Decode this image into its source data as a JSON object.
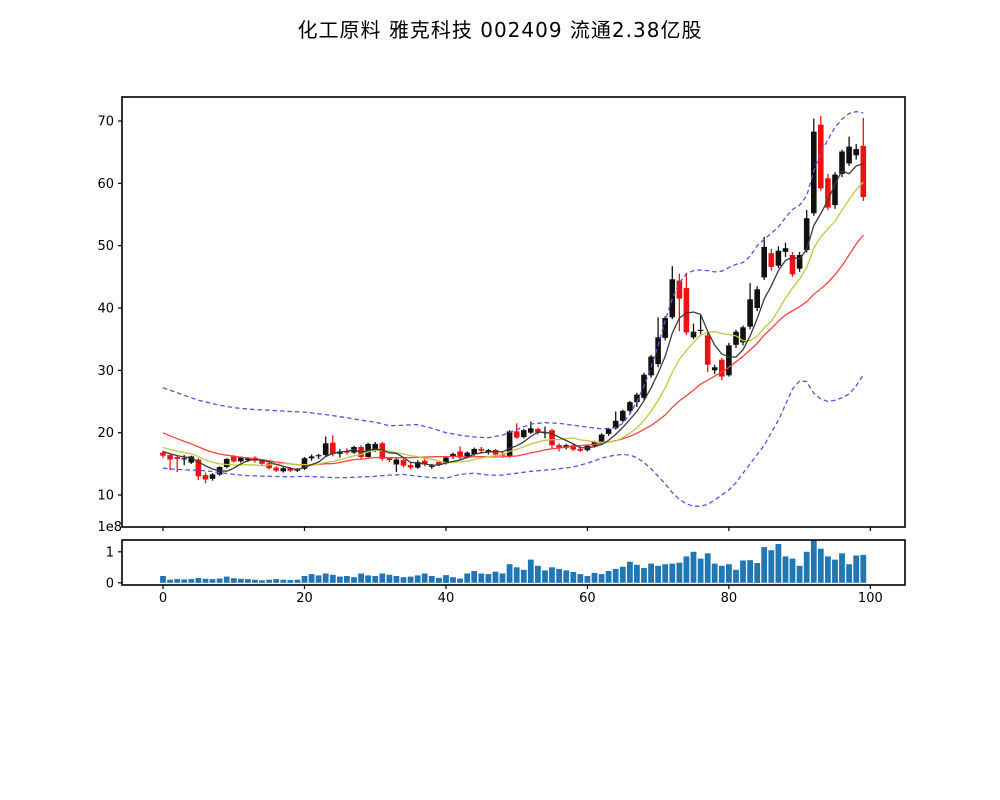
{
  "title": "化工原料 雅克科技 002409 流通2.38亿股",
  "labels": {
    "volume_scale": "1e8"
  },
  "chart_data": {
    "type": "candlestick",
    "title": "化工原料 雅克科技 002409 流通2.38亿股",
    "xlabel": "",
    "ylabel": "",
    "grid": false,
    "legend": false,
    "panels": [
      "price-with-ma-and-bollinger",
      "volume"
    ],
    "x": "trading day index 0-99",
    "xlim": [
      -5.8,
      104.9
    ],
    "x_ticks": [
      0,
      20,
      40,
      60,
      80,
      100
    ],
    "price_axis": {
      "lim": [
        4.87,
        73.85
      ],
      "ticks": [
        10,
        20,
        30,
        40,
        50,
        60,
        70
      ]
    },
    "volume_axis": {
      "lim": [
        -0.07,
        1.38
      ],
      "ticks": [
        0,
        1
      ],
      "scale_label": "1e8"
    },
    "colors": {
      "up_candle": "#111111",
      "down_candle": "#ee1111",
      "ma_short": "#3a3a3a",
      "ma_mid": "#c6c63e",
      "ma_long": "#ff4040",
      "bollinger_band": "#5555dd",
      "volume_bar": "#1f77b4",
      "spine": "#000000",
      "background": "#ffffff"
    },
    "series": {
      "open": [
        16.8,
        16.4,
        16.1,
        15.8,
        15.2,
        15.7,
        13.2,
        12.6,
        13.3,
        14.5,
        16.2,
        15.4,
        15.6,
        16.0,
        15.5,
        15.1,
        14.4,
        13.8,
        14.3,
        13.9,
        14.2,
        15.9,
        16.2,
        16.4,
        18.4,
        16.6,
        17.0,
        16.8,
        17.7,
        16.1,
        17.1,
        18.3,
        15.9,
        14.9,
        15.6,
        14.8,
        14.4,
        15.5,
        14.6,
        15.3,
        15.1,
        16.1,
        17.0,
        16.1,
        16.5,
        17.4,
        16.9,
        17.2,
        16.5,
        16.2,
        20.2,
        19.3,
        20.0,
        20.6,
        20.0,
        20.4,
        18.0,
        17.6,
        18.0,
        17.4,
        17.2,
        17.9,
        18.6,
        19.8,
        20.7,
        21.9,
        23.5,
        24.9,
        25.6,
        29.2,
        31.0,
        35.2,
        38.5,
        44.4,
        43.2,
        35.3,
        36.4,
        35.6,
        30.0,
        31.7,
        29.2,
        34.1,
        34.5,
        37.0,
        40.0,
        44.9,
        48.8,
        46.8,
        49.0,
        48.5,
        46.3,
        49.3,
        55.2,
        69.4,
        60.8,
        56.5,
        61.5,
        63.2,
        64.5,
        66.0
      ],
      "high": [
        17.1,
        16.6,
        16.3,
        16.4,
        16.3,
        15.9,
        13.6,
        13.5,
        14.6,
        15.9,
        16.4,
        16.2,
        16.1,
        16.2,
        15.7,
        15.3,
        14.6,
        14.5,
        14.5,
        14.3,
        16.1,
        16.5,
        16.6,
        19.4,
        19.6,
        17.4,
        17.5,
        17.9,
        18.0,
        18.4,
        18.5,
        18.5,
        16.1,
        16.0,
        15.8,
        15.2,
        15.6,
        16.2,
        15.0,
        15.5,
        16.2,
        16.8,
        17.8,
        17.0,
        17.6,
        17.7,
        17.4,
        17.4,
        16.9,
        20.4,
        21.5,
        20.6,
        21.8,
        20.8,
        21.0,
        20.6,
        18.3,
        18.2,
        18.2,
        17.8,
        18.1,
        18.7,
        19.9,
        20.8,
        23.4,
        23.7,
        25.1,
        26.4,
        29.6,
        32.5,
        38.5,
        38.7,
        46.7,
        45.5,
        45.4,
        37.5,
        38.9,
        36.0,
        30.9,
        32.0,
        34.4,
        36.5,
        37.2,
        44.0,
        43.5,
        51.4,
        49.5,
        49.9,
        50.5,
        49.0,
        49.0,
        55.7,
        70.4,
        70.8,
        61.5,
        61.8,
        65.4,
        67.5,
        66.3,
        70.5
      ],
      "low": [
        15.9,
        14.0,
        13.7,
        14.8,
        15.0,
        12.4,
        11.9,
        12.3,
        13.1,
        14.3,
        15.2,
        15.2,
        15.3,
        15.2,
        14.7,
        14.1,
        13.7,
        13.6,
        13.7,
        13.7,
        14.0,
        15.5,
        15.8,
        16.2,
        16.2,
        16.0,
        16.5,
        16.6,
        15.8,
        16.0,
        16.9,
        15.5,
        15.3,
        13.7,
        14.4,
        14.1,
        14.2,
        14.6,
        14.2,
        14.6,
        14.9,
        15.8,
        15.6,
        15.9,
        16.3,
        16.8,
        16.5,
        16.3,
        16.1,
        16.0,
        19.0,
        19.1,
        19.8,
        19.7,
        19.1,
        17.5,
        17.0,
        17.3,
        17.1,
        16.9,
        17.0,
        17.6,
        18.4,
        19.5,
        20.5,
        21.6,
        23.2,
        24.1,
        25.3,
        28.8,
        30.5,
        34.8,
        38.2,
        36.3,
        35.7,
        35.0,
        35.8,
        29.7,
        29.4,
        28.4,
        29.0,
        33.6,
        34.0,
        36.6,
        39.5,
        44.5,
        46.0,
        46.4,
        48.2,
        45.0,
        45.8,
        48.9,
        54.8,
        58.8,
        55.7,
        55.9,
        61.0,
        62.8,
        63.8,
        57.2
      ],
      "close": [
        16.3,
        15.7,
        15.8,
        15.9,
        16.2,
        13.0,
        12.5,
        13.3,
        14.5,
        15.8,
        15.4,
        16.0,
        15.9,
        15.5,
        15.0,
        14.3,
        13.9,
        14.3,
        13.9,
        14.1,
        15.9,
        16.2,
        16.4,
        18.3,
        16.6,
        17.0,
        16.8,
        17.7,
        16.1,
        18.2,
        18.2,
        15.8,
        15.6,
        15.7,
        14.7,
        14.4,
        15.3,
        14.9,
        14.7,
        14.8,
        16.0,
        16.6,
        16.0,
        16.8,
        17.4,
        17.1,
        17.2,
        16.5,
        16.4,
        20.2,
        19.2,
        20.4,
        20.7,
        20.0,
        20.1,
        18.0,
        17.6,
        18.0,
        17.3,
        17.1,
        17.9,
        18.5,
        19.7,
        20.6,
        21.9,
        23.5,
        24.9,
        26.1,
        29.3,
        32.2,
        35.3,
        38.4,
        44.6,
        41.5,
        36.1,
        36.2,
        36.5,
        30.9,
        30.5,
        29.0,
        34.0,
        36.2,
        36.9,
        41.4,
        43.0,
        49.8,
        46.6,
        49.2,
        49.6,
        45.4,
        48.5,
        54.4,
        68.3,
        59.2,
        56.1,
        61.4,
        65.1,
        65.9,
        65.5,
        57.8
      ],
      "volume_1e8": [
        0.22,
        0.1,
        0.12,
        0.11,
        0.12,
        0.16,
        0.13,
        0.12,
        0.14,
        0.2,
        0.15,
        0.13,
        0.12,
        0.1,
        0.08,
        0.1,
        0.12,
        0.1,
        0.09,
        0.1,
        0.22,
        0.28,
        0.24,
        0.3,
        0.26,
        0.2,
        0.22,
        0.18,
        0.3,
        0.24,
        0.22,
        0.3,
        0.26,
        0.22,
        0.18,
        0.2,
        0.24,
        0.3,
        0.22,
        0.16,
        0.25,
        0.18,
        0.14,
        0.3,
        0.38,
        0.3,
        0.28,
        0.36,
        0.3,
        0.6,
        0.5,
        0.42,
        0.75,
        0.55,
        0.4,
        0.5,
        0.45,
        0.4,
        0.35,
        0.28,
        0.22,
        0.32,
        0.28,
        0.38,
        0.45,
        0.52,
        0.68,
        0.58,
        0.48,
        0.62,
        0.55,
        0.6,
        0.62,
        0.65,
        0.85,
        1.0,
        0.78,
        0.95,
        0.62,
        0.55,
        0.6,
        0.42,
        0.72,
        0.73,
        0.64,
        1.15,
        1.05,
        1.25,
        0.85,
        0.78,
        0.55,
        1.0,
        1.38,
        1.1,
        0.85,
        0.75,
        0.95,
        0.6,
        0.88,
        0.9
      ]
    },
    "indicators": {
      "ma_windows": {
        "short": 5,
        "mid": 10,
        "long": 20
      },
      "prehistory_close": [
        26,
        25.5,
        25,
        24.5,
        24,
        23,
        22,
        21,
        20,
        19.5,
        19,
        18.8,
        18.5,
        18.2,
        18,
        17.8,
        17.5,
        17.3,
        17,
        16.8
      ],
      "bollinger_upper_anchors": [
        [
          0,
          27.2
        ],
        [
          3,
          26.0
        ],
        [
          5,
          25.2
        ],
        [
          8,
          24.4
        ],
        [
          10,
          24.0
        ],
        [
          13,
          23.7
        ],
        [
          15,
          23.6
        ],
        [
          18,
          23.4
        ],
        [
          20,
          23.3
        ],
        [
          23,
          22.9
        ],
        [
          26,
          22.4
        ],
        [
          28,
          22.0
        ],
        [
          30,
          21.7
        ],
        [
          32,
          21.1
        ],
        [
          34,
          21.2
        ],
        [
          36,
          21.3
        ],
        [
          38,
          20.7
        ],
        [
          40,
          20.0
        ],
        [
          42,
          19.6
        ],
        [
          44,
          19.3
        ],
        [
          46,
          19.2
        ],
        [
          48,
          19.6
        ],
        [
          50,
          20.5
        ],
        [
          52,
          21.4
        ],
        [
          54,
          21.6
        ],
        [
          56,
          21.5
        ],
        [
          58,
          21.2
        ],
        [
          60,
          20.9
        ],
        [
          62,
          20.6
        ],
        [
          64,
          20.8
        ],
        [
          65,
          21.5
        ],
        [
          66,
          23.0
        ],
        [
          67,
          25.0
        ],
        [
          68,
          27.5
        ],
        [
          69,
          30.5
        ],
        [
          70,
          34.0
        ],
        [
          71,
          38.0
        ],
        [
          72,
          41.5
        ],
        [
          73,
          44.0
        ],
        [
          74,
          45.5
        ],
        [
          75,
          46.0
        ],
        [
          76,
          46.1
        ],
        [
          77,
          46.0
        ],
        [
          78,
          45.8
        ],
        [
          79,
          45.9
        ],
        [
          80,
          46.5
        ],
        [
          81,
          47.0
        ],
        [
          82,
          47.3
        ],
        [
          83,
          48.3
        ],
        [
          84,
          50.0
        ],
        [
          85,
          51.0
        ],
        [
          86,
          52.0
        ],
        [
          87,
          53.0
        ],
        [
          88,
          54.5
        ],
        [
          89,
          55.8
        ],
        [
          90,
          56.5
        ],
        [
          91,
          58.0
        ],
        [
          92,
          62.0
        ],
        [
          93,
          65.0
        ],
        [
          94,
          67.0
        ],
        [
          95,
          69.0
        ],
        [
          96,
          70.3
        ],
        [
          97,
          71.2
        ],
        [
          98,
          71.5
        ],
        [
          99,
          71.3
        ]
      ],
      "bollinger_lower_anchors": [
        [
          0,
          14.3
        ],
        [
          2,
          14.1
        ],
        [
          4,
          14.0
        ],
        [
          6,
          13.9
        ],
        [
          8,
          13.6
        ],
        [
          10,
          13.3
        ],
        [
          12,
          13.1
        ],
        [
          15,
          13.0
        ],
        [
          18,
          12.9
        ],
        [
          20,
          13.0
        ],
        [
          22,
          12.9
        ],
        [
          24,
          12.8
        ],
        [
          26,
          12.8
        ],
        [
          28,
          12.9
        ],
        [
          30,
          13.0
        ],
        [
          32,
          13.2
        ],
        [
          34,
          13.3
        ],
        [
          36,
          13.0
        ],
        [
          38,
          12.8
        ],
        [
          40,
          12.7
        ],
        [
          42,
          13.3
        ],
        [
          44,
          13.5
        ],
        [
          46,
          13.2
        ],
        [
          48,
          13.2
        ],
        [
          50,
          13.5
        ],
        [
          52,
          13.8
        ],
        [
          54,
          14.0
        ],
        [
          56,
          14.2
        ],
        [
          58,
          14.5
        ],
        [
          60,
          15.1
        ],
        [
          62,
          15.9
        ],
        [
          63,
          16.2
        ],
        [
          64,
          16.4
        ],
        [
          65,
          16.5
        ],
        [
          66,
          16.4
        ],
        [
          67,
          16.0
        ],
        [
          68,
          15.2
        ],
        [
          69,
          14.2
        ],
        [
          70,
          13.0
        ],
        [
          71,
          11.8
        ],
        [
          72,
          10.4
        ],
        [
          73,
          9.3
        ],
        [
          74,
          8.6
        ],
        [
          75,
          8.2
        ],
        [
          76,
          8.2
        ],
        [
          77,
          8.5
        ],
        [
          78,
          9.2
        ],
        [
          79,
          10.0
        ],
        [
          80,
          10.8
        ],
        [
          81,
          12.0
        ],
        [
          82,
          13.5
        ],
        [
          83,
          15.0
        ],
        [
          84,
          16.5
        ],
        [
          85,
          18.0
        ],
        [
          86,
          20.0
        ],
        [
          87,
          22.0
        ],
        [
          88,
          24.5
        ],
        [
          89,
          27.0
        ],
        [
          90,
          28.3
        ],
        [
          91,
          28.2
        ],
        [
          92,
          26.3
        ],
        [
          93,
          25.4
        ],
        [
          94,
          25.0
        ],
        [
          95,
          25.2
        ],
        [
          96,
          25.6
        ],
        [
          97,
          26.2
        ],
        [
          98,
          27.5
        ],
        [
          99,
          29.3
        ]
      ]
    }
  }
}
